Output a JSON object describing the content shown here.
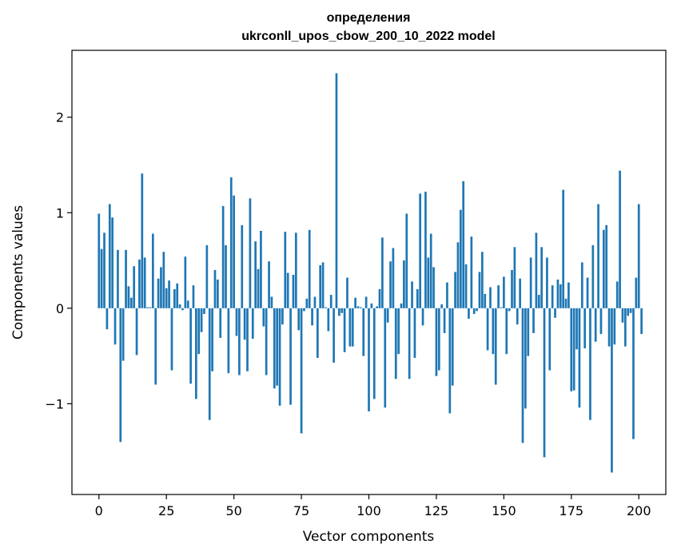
{
  "chart_data": {
    "type": "bar",
    "title": "определения",
    "subtitle": "ukrconll_upos_cbow_200_10_2022 model",
    "xlabel": "Vector components",
    "ylabel": "Components values",
    "xlim": [
      -10,
      210
    ],
    "ylim": [
      -1.95,
      2.7
    ],
    "xticks": [
      0,
      25,
      50,
      75,
      100,
      125,
      150,
      175,
      200
    ],
    "yticks": [
      -1,
      0,
      1,
      2
    ],
    "ytick_labels": [
      "−1",
      "0",
      "1",
      "2"
    ],
    "bar_color": "#1f77b4",
    "grid": false,
    "values": [
      0.99,
      0.62,
      0.79,
      -0.22,
      1.09,
      0.95,
      -0.38,
      0.61,
      -1.4,
      -0.55,
      0.61,
      0.23,
      0.11,
      0.44,
      -0.49,
      0.51,
      1.41,
      0.53,
      0.01,
      0.01,
      0.78,
      -0.8,
      0.31,
      0.43,
      0.59,
      0.21,
      0.29,
      -0.65,
      0.2,
      0.26,
      0.04,
      -0.02,
      0.54,
      0.08,
      -0.79,
      0.24,
      -0.95,
      -0.48,
      -0.25,
      -0.06,
      0.66,
      -1.17,
      -0.66,
      0.4,
      0.3,
      -0.31,
      1.07,
      0.66,
      -0.68,
      1.37,
      1.18,
      -0.29,
      -0.7,
      0.87,
      -0.33,
      -0.66,
      1.15,
      -0.32,
      0.7,
      0.41,
      0.81,
      -0.19,
      -0.7,
      0.49,
      0.12,
      -0.84,
      -0.81,
      -1.02,
      -0.17,
      0.8,
      0.37,
      -1.01,
      0.35,
      0.79,
      -0.23,
      -1.31,
      -0.03,
      0.1,
      0.82,
      -0.18,
      0.12,
      -0.52,
      0.45,
      0.48,
      0.01,
      -0.24,
      0.14,
      -0.57,
      2.46,
      -0.08,
      -0.05,
      -0.46,
      0.32,
      -0.4,
      -0.4,
      0.11,
      0.02,
      0.01,
      -0.5,
      0.12,
      -1.08,
      0.05,
      -0.95,
      0.02,
      0.2,
      0.74,
      -1.04,
      -0.15,
      0.49,
      0.63,
      -0.74,
      -0.48,
      0.05,
      0.5,
      0.99,
      -0.74,
      0.28,
      -0.52,
      0.2,
      1.2,
      -0.18,
      1.22,
      0.53,
      0.78,
      0.43,
      -0.71,
      -0.65,
      0.04,
      -0.26,
      0.27,
      -1.1,
      -0.81,
      0.38,
      0.69,
      1.03,
      1.33,
      0.46,
      -0.11,
      0.75,
      -0.06,
      -0.03,
      0.38,
      0.59,
      0.15,
      -0.44,
      0.22,
      -0.48,
      -0.8,
      0.24,
      0.01,
      0.33,
      -0.48,
      -0.03,
      0.4,
      0.64,
      -0.17,
      0.31,
      -1.41,
      -1.05,
      -0.5,
      0.53,
      -0.26,
      0.79,
      0.14,
      0.64,
      -1.56,
      0.53,
      -0.65,
      0.24,
      -0.1,
      0.3,
      0.25,
      1.24,
      0.1,
      0.27,
      -0.87,
      -0.86,
      -0.43,
      -1.04,
      0.48,
      -0.42,
      0.32,
      -1.17,
      0.66,
      -0.35,
      1.09,
      -0.27,
      0.82,
      0.87,
      -0.4,
      -1.72,
      -0.38,
      0.28,
      1.44,
      -0.15,
      -0.4,
      -0.08,
      -0.05,
      -1.37,
      0.32,
      1.09,
      -0.27
    ]
  }
}
